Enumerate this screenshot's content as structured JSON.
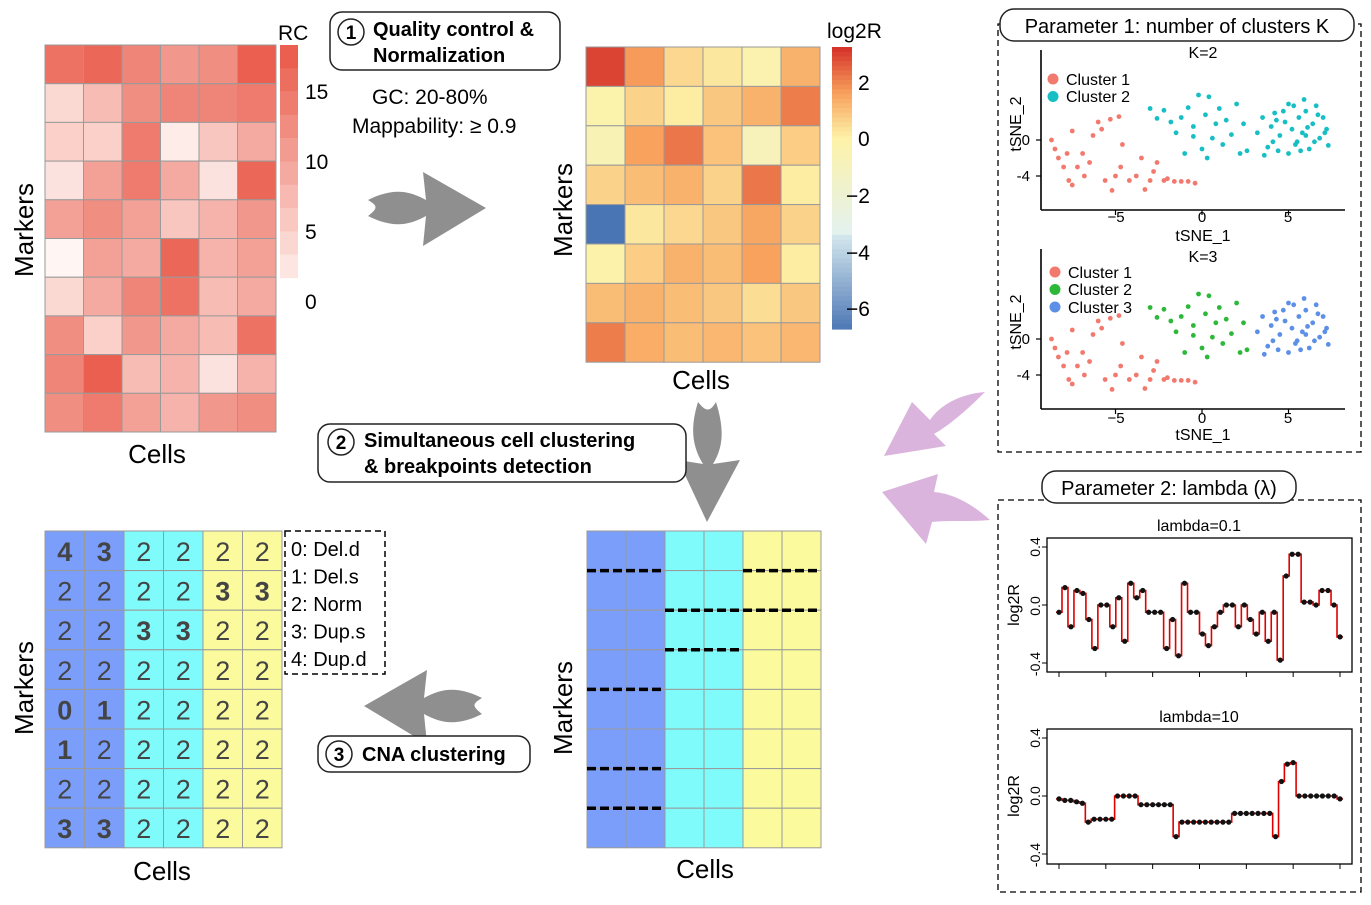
{
  "panel_rc": {
    "ylabel": "Markers",
    "xlabel": "Cells",
    "legend_title": "RC",
    "legend_ticks": [
      "15",
      "10",
      "5",
      "0"
    ],
    "values": [
      [
        14,
        15,
        12,
        10,
        11,
        16
      ],
      [
        3,
        6,
        11,
        12,
        12,
        13
      ],
      [
        4,
        4,
        13,
        1,
        5,
        8
      ],
      [
        2,
        9,
        13,
        8,
        2,
        15
      ],
      [
        9,
        11,
        9,
        5,
        7,
        10
      ],
      [
        0,
        9,
        8,
        15,
        7,
        9
      ],
      [
        3,
        8,
        12,
        14,
        6,
        8
      ],
      [
        11,
        4,
        10,
        8,
        6,
        14
      ],
      [
        12,
        16,
        6,
        7,
        2,
        7
      ],
      [
        11,
        13,
        9,
        7,
        10,
        11
      ]
    ]
  },
  "step1": {
    "number": "1",
    "label_line1": "Quality control &",
    "label_line2": "Normalization",
    "gc": "GC: 20-80%",
    "mappability": "Mappability: ≥ 0.9"
  },
  "panel_log2r": {
    "ylabel": "Markers",
    "xlabel": "Cells",
    "legend_title": "log2R",
    "legend_ticks": [
      "2",
      "0",
      "−2",
      "−4",
      "−6"
    ],
    "values": [
      [
        2.8,
        1.6,
        0.5,
        0.2,
        -0.3,
        1.2
      ],
      [
        -0.2,
        0.6,
        0.1,
        0.8,
        1.2,
        2.0
      ],
      [
        -0.6,
        1.5,
        2.1,
        0.9,
        -0.8,
        0.7
      ],
      [
        0.6,
        1.0,
        1.2,
        0.6,
        2.1,
        0.1
      ],
      [
        -6.5,
        0.2,
        0.5,
        0.8,
        1.4,
        0.6
      ],
      [
        -0.1,
        0.7,
        1.2,
        1.0,
        1.5,
        0.1
      ],
      [
        1.0,
        1.2,
        1.0,
        0.8,
        0.4,
        0.8
      ],
      [
        2.0,
        1.3,
        1.0,
        1.1,
        0.9,
        1.1
      ]
    ]
  },
  "step2": {
    "number": "2",
    "label_line1": "Simultaneous cell clustering",
    "label_line2": "& breakpoints detection"
  },
  "panel_segments": {
    "ylabel": "Markers",
    "xlabel": "Cells",
    "cluster_colors": [
      "#7b9efb",
      "#80fbfb",
      "#fbfb9e"
    ],
    "breakpoints": [
      "rows 1, 4, 6, 7 in cluster 1",
      "rows 2, 3 in cluster 2",
      "rows 1, 2 in cluster 3"
    ]
  },
  "step3": {
    "number": "3",
    "label": "CNA clustering"
  },
  "panel_cna": {
    "ylabel": "Markers",
    "xlabel": "Cells",
    "values": [
      [
        "4",
        "3",
        "2",
        "2",
        "2",
        "2"
      ],
      [
        "2",
        "2",
        "2",
        "2",
        "3",
        "3"
      ],
      [
        "2",
        "2",
        "3",
        "3",
        "2",
        "2"
      ],
      [
        "2",
        "2",
        "2",
        "2",
        "2",
        "2"
      ],
      [
        "0",
        "1",
        "2",
        "2",
        "2",
        "2"
      ],
      [
        "1",
        "2",
        "2",
        "2",
        "2",
        "2"
      ],
      [
        "2",
        "2",
        "2",
        "2",
        "2",
        "2"
      ],
      [
        "3",
        "3",
        "2",
        "2",
        "2",
        "2"
      ]
    ],
    "legend": [
      "0: Del.d",
      "1: Del.s",
      "2: Norm",
      "3: Dup.s",
      "4: Dup.d"
    ]
  },
  "param1": {
    "title": "Parameter 1: number of clusters K",
    "plots": [
      {
        "title": "K=2",
        "legend": [
          "Cluster 1",
          "Cluster 2"
        ],
        "colors": [
          "#f2796e",
          "#17bfc4"
        ]
      },
      {
        "title": "K=3",
        "legend": [
          "Cluster 1",
          "Cluster 2",
          "Cluster 3"
        ],
        "colors": [
          "#f2796e",
          "#2eb83a",
          "#5c8fe6"
        ]
      }
    ],
    "xlabel": "tSNE_1",
    "ylabel": "tSNE_2",
    "xticks": [
      "−5",
      "0",
      "5"
    ],
    "yticks": [
      "0",
      "-4"
    ]
  },
  "param2": {
    "title": "Parameter 2: lambda (λ)",
    "ylabel": "log2R",
    "yticks": [
      "0.4",
      "0.0",
      "-0.4"
    ],
    "plots": [
      {
        "title": "lambda=0.1",
        "points": [
          -0.05,
          0.12,
          -0.15,
          0.1,
          0.08,
          -0.1,
          -0.3,
          0.0,
          0.0,
          -0.15,
          0.05,
          -0.25,
          0.15,
          0.05,
          0.1,
          -0.05,
          -0.05,
          -0.05,
          -0.3,
          -0.1,
          -0.35,
          0.15,
          -0.05,
          -0.05,
          -0.2,
          -0.28,
          -0.15,
          -0.05,
          0.0,
          0.0,
          -0.15,
          0.0,
          -0.1,
          -0.2,
          -0.05,
          -0.25,
          -0.05,
          -0.38,
          0.2,
          0.35,
          0.35,
          0.02,
          0.02,
          0.0,
          0.1,
          0.1,
          0.0,
          -0.22
        ]
      },
      {
        "title": "lambda=10",
        "points": [
          -0.02,
          -0.03,
          -0.03,
          -0.04,
          -0.05,
          -0.18,
          -0.16,
          -0.16,
          -0.16,
          -0.16,
          0.0,
          0.0,
          0.0,
          0.0,
          -0.06,
          -0.06,
          -0.06,
          -0.06,
          -0.06,
          -0.06,
          -0.28,
          -0.18,
          -0.18,
          -0.18,
          -0.18,
          -0.18,
          -0.18,
          -0.18,
          -0.18,
          -0.18,
          -0.12,
          -0.12,
          -0.12,
          -0.12,
          -0.12,
          -0.12,
          -0.12,
          -0.28,
          0.1,
          0.22,
          0.23,
          0.0,
          0.0,
          0.0,
          0.0,
          0.0,
          0.0,
          0.0,
          -0.02
        ]
      }
    ]
  }
}
